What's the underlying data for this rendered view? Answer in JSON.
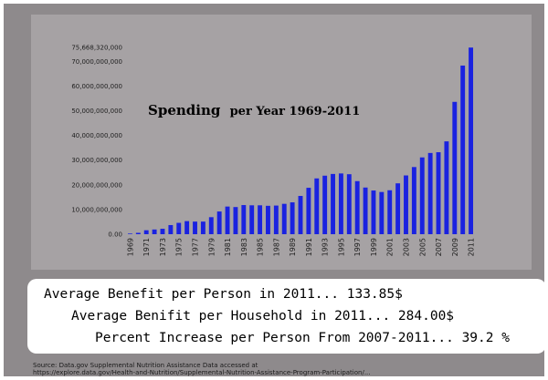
{
  "chart_data": {
    "type": "bar",
    "title_main": "Spending",
    "title_rest": "per Year 1969-2011",
    "color": "#1a22e0",
    "ylim": [
      0,
      75668320000
    ],
    "yticks": [
      0,
      10000000000,
      20000000000,
      30000000000,
      40000000000,
      50000000000,
      60000000000,
      70000000000,
      75668320000
    ],
    "ytick_labels": [
      "0.00",
      "10,000,000,000",
      "20,000,000,000",
      "30,000,000,000",
      "40,000,000,000",
      "50,000,000,000",
      "60,000,000,000",
      "70,000,000,000",
      "75,668,320,000"
    ],
    "categories": [
      "1969",
      "1970",
      "1971",
      "1972",
      "1973",
      "1974",
      "1975",
      "1976",
      "1977",
      "1978",
      "1979",
      "1980",
      "1981",
      "1982",
      "1983",
      "1984",
      "1985",
      "1986",
      "1987",
      "1988",
      "1989",
      "1990",
      "1991",
      "1992",
      "1993",
      "1994",
      "1995",
      "1996",
      "1997",
      "1998",
      "1999",
      "2000",
      "2001",
      "2002",
      "2003",
      "2004",
      "2005",
      "2006",
      "2007",
      "2008",
      "2009",
      "2010",
      "2011"
    ],
    "xtick_labels": [
      "1969",
      "1971",
      "1973",
      "1975",
      "1977",
      "1979",
      "1981",
      "1983",
      "1985",
      "1987",
      "1989",
      "1991",
      "1993",
      "1995",
      "1997",
      "1999",
      "2001",
      "2003",
      "2005",
      "2007",
      "2009",
      "2011"
    ],
    "values": [
      250000000,
      550000000,
      1600000000,
      1900000000,
      2200000000,
      3700000000,
      4600000000,
      5300000000,
      5100000000,
      5100000000,
      6900000000,
      9200000000,
      11200000000,
      11000000000,
      11800000000,
      11700000000,
      11700000000,
      11500000000,
      11600000000,
      12300000000,
      12900000000,
      15500000000,
      18800000000,
      22600000000,
      23700000000,
      24400000000,
      24600000000,
      24300000000,
      21500000000,
      18900000000,
      17700000000,
      17100000000,
      17800000000,
      20600000000,
      23800000000,
      27200000000,
      31100000000,
      32900000000,
      33200000000,
      37600000000,
      53600000000,
      68300000000,
      75600000000
    ]
  },
  "stats": {
    "line1": "Average Benefit per Person in 2011... 133.85$",
    "line2": "Average Benifit per Household in 2011... 284.00$",
    "line3": "Percent Increase per Person From 2007-2011... 39.2 %"
  },
  "source": {
    "line1": "Source: Data.gov Supplemental Nutrition Assistance Data accessed at",
    "line2": "https://explore.data.gov/Health-and-Nutrition/Supplemental-Nutrition-Assistance-Program-Participation/..."
  }
}
